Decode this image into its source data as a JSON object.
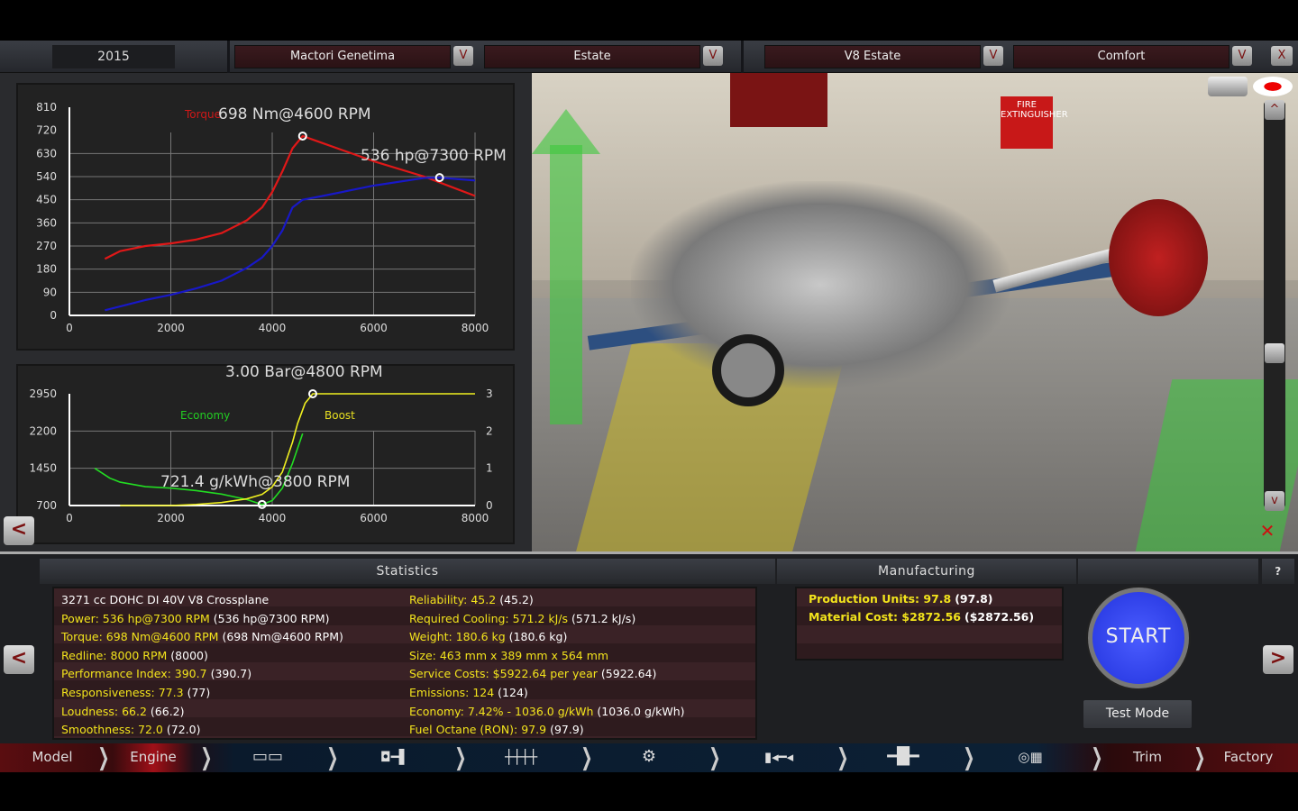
{
  "header": {
    "year": "2015",
    "model": "Mactori Genetima",
    "body": "Estate",
    "engine": "V8 Estate",
    "trim": "Comfort",
    "dropdown_glyph": "V",
    "close_glyph": "X"
  },
  "charts": {
    "peak_torque_label": "698 Nm@4600 RPM",
    "peak_power_label": "536 hp@7300 RPM",
    "peak_boost_label": "3.00 Bar@4800 RPM",
    "best_economy_label": "721.4 g/kWh@3800 RPM"
  },
  "chart_data": [
    {
      "type": "line",
      "x_ticks": [
        "0",
        "2000",
        "4000",
        "6000",
        "8000"
      ],
      "y_ticks": [
        "0",
        "90",
        "180",
        "270",
        "360",
        "450",
        "540",
        "630",
        "720",
        "810"
      ],
      "xlim": [
        0,
        8000
      ],
      "ylim": [
        0,
        810
      ],
      "grid": true,
      "series": [
        {
          "name": "Torque",
          "color": "#e01818",
          "x": [
            700,
            1000,
            1500,
            2000,
            2500,
            3000,
            3500,
            3800,
            4000,
            4200,
            4400,
            4600,
            5000,
            6000,
            7000,
            8000
          ],
          "y": [
            220,
            250,
            270,
            280,
            295,
            320,
            370,
            420,
            480,
            560,
            650,
            698,
            670,
            600,
            540,
            465
          ]
        },
        {
          "color": "#1818c8",
          "x": [
            700,
            1000,
            1500,
            2000,
            2500,
            3000,
            3500,
            3800,
            4000,
            4200,
            4400,
            4600,
            5000,
            6000,
            7000,
            7300,
            8000
          ],
          "y": [
            20,
            35,
            60,
            80,
            105,
            135,
            185,
            225,
            270,
            330,
            420,
            450,
            465,
            505,
            535,
            536,
            525
          ]
        }
      ]
    },
    {
      "type": "line",
      "x_ticks": [
        "0",
        "2000",
        "4000",
        "6000",
        "8000"
      ],
      "y_ticks": [
        "700",
        "1450",
        "2200",
        "2950"
      ],
      "y2_ticks": [
        "0",
        "1",
        "2",
        "3"
      ],
      "xlim": [
        0,
        8000
      ],
      "ylim": [
        700,
        2950
      ],
      "y2lim": [
        0,
        3
      ],
      "grid": true,
      "series": [
        {
          "name": "Economy",
          "color": "#22dd22",
          "axis": "left",
          "x": [
            500,
            800,
            1000,
            1500,
            2000,
            2500,
            3000,
            3500,
            3800,
            4000,
            4200,
            4400,
            4600
          ],
          "y": [
            1450,
            1250,
            1170,
            1080,
            1050,
            1000,
            930,
            820,
            721,
            800,
            1050,
            1550,
            2150
          ]
        },
        {
          "name": "Boost",
          "color": "#f0f020",
          "axis": "right",
          "x": [
            1000,
            2000,
            2500,
            3000,
            3500,
            3800,
            4000,
            4200,
            4400,
            4500,
            4650,
            4800,
            8000
          ],
          "y": [
            0,
            0,
            0.03,
            0.08,
            0.18,
            0.3,
            0.5,
            0.9,
            1.7,
            2.2,
            2.75,
            3,
            3
          ]
        }
      ]
    }
  ],
  "statistics": {
    "title": "Statistics",
    "rows": [
      {
        "label": "3271 cc DOHC DI 40V V8 Crossplane",
        "extra": ""
      },
      {
        "label": "Power: 536 hp@7300 RPM",
        "extra": "(536 hp@7300 RPM)"
      },
      {
        "label": "Torque: 698 Nm@4600 RPM",
        "extra": "(698 Nm@4600 RPM)"
      },
      {
        "label": "Redline: 8000 RPM",
        "extra": "(8000)"
      },
      {
        "label": "Performance Index: 390.7",
        "extra": "(390.7)"
      },
      {
        "label": "Responsiveness: 77.3",
        "extra": "(77)"
      },
      {
        "label": "Loudness: 66.2",
        "extra": "(66.2)"
      },
      {
        "label": "Smoothness: 72.0",
        "extra": "(72.0)"
      },
      {
        "label": "Reliability: 45.2",
        "extra": "(45.2)"
      },
      {
        "label": "Required Cooling: 571.2 kJ/s",
        "extra": "(571.2 kJ/s)"
      },
      {
        "label": "Weight: 180.6 kg",
        "extra": "(180.6 kg)"
      },
      {
        "label": "Size: 463 mm x 389 mm x 564 mm",
        "extra": ""
      },
      {
        "label": "Service Costs: $5922.64 per year",
        "extra": "(5922.64)"
      },
      {
        "label": "Emissions: 124",
        "extra": "(124)"
      },
      {
        "label": "Economy: 7.42% - 1036.0 g/kWh",
        "extra": "(1036.0 g/kWh)"
      },
      {
        "label": "Fuel Octane (RON): 97.9",
        "extra": "(97.9)"
      }
    ]
  },
  "manufacturing": {
    "title": "Manufacturing",
    "rows": [
      {
        "label": "Production Units: 97.8",
        "extra": "(97.8)"
      },
      {
        "label": "Material Cost: $2872.56",
        "extra": "($2872.56)"
      }
    ]
  },
  "actions": {
    "start": "START",
    "test_mode": "Test Mode",
    "help": "?",
    "prev": "<",
    "next": ">"
  },
  "viewport": {
    "sign_text": "FIRE EXTINGUISHER",
    "up": "^",
    "down": "v"
  },
  "nav": {
    "model": "Model",
    "engine": "Engine",
    "trim": "Trim",
    "factory": "Factory"
  }
}
